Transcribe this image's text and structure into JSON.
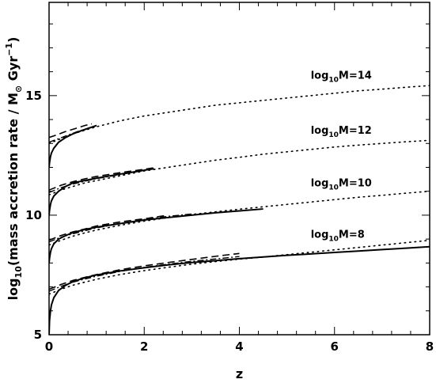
{
  "chart_data": {
    "type": "line",
    "xlabel": "z",
    "ylabel": {
      "prefix": "log",
      "prefix_sub": "10",
      "text": "(mass accretion rate / M",
      "sun_sub": "⊙",
      "unit": " Gyr",
      "unit_sup": "−1",
      "close": ")"
    },
    "xlim": [
      0,
      8
    ],
    "ylim": [
      5,
      18.9
    ],
    "x_ticks": [
      0,
      2,
      4,
      6,
      8
    ],
    "y_ticks": [
      5,
      10,
      15
    ],
    "annotations": [
      {
        "prefix": "log",
        "sub": "10",
        "text": "M=14",
        "x": 5.5,
        "y": 15.7
      },
      {
        "prefix": "log",
        "sub": "10",
        "text": "M=12",
        "x": 5.5,
        "y": 13.4
      },
      {
        "prefix": "log",
        "sub": "10",
        "text": "M=10",
        "x": 5.5,
        "y": 11.2
      },
      {
        "prefix": "log",
        "sub": "10",
        "text": "M=8",
        "x": 5.5,
        "y": 9.05
      }
    ],
    "series": [
      {
        "style": "solid",
        "points": [
          [
            0.0,
            12.0
          ],
          [
            0.01,
            12.2
          ],
          [
            0.03,
            12.45
          ],
          [
            0.05,
            12.6
          ],
          [
            0.1,
            12.8
          ],
          [
            0.2,
            13.05
          ],
          [
            0.35,
            13.25
          ],
          [
            0.5,
            13.4
          ],
          [
            0.7,
            13.55
          ],
          [
            0.85,
            13.65
          ],
          [
            1.0,
            13.75
          ]
        ]
      },
      {
        "style": "dashed",
        "points": [
          [
            0.0,
            13.25
          ],
          [
            0.15,
            13.35
          ],
          [
            0.35,
            13.5
          ],
          [
            0.55,
            13.62
          ],
          [
            0.75,
            13.75
          ],
          [
            0.9,
            13.82
          ]
        ]
      },
      {
        "style": "dashdot",
        "points": [
          [
            0.0,
            13.05
          ],
          [
            0.2,
            13.2
          ],
          [
            0.4,
            13.35
          ],
          [
            0.6,
            13.5
          ],
          [
            0.8,
            13.62
          ],
          [
            1.0,
            13.72
          ]
        ]
      },
      {
        "style": "dotted",
        "points": [
          [
            0.0,
            13.0
          ],
          [
            0.25,
            13.2
          ],
          [
            0.5,
            13.4
          ],
          [
            0.75,
            13.55
          ],
          [
            1.0,
            13.7
          ],
          [
            1.5,
            13.95
          ],
          [
            2.0,
            14.15
          ],
          [
            2.5,
            14.3
          ],
          [
            3.0,
            14.45
          ],
          [
            3.5,
            14.6
          ],
          [
            4.0,
            14.7
          ],
          [
            4.5,
            14.8
          ],
          [
            5.0,
            14.9
          ],
          [
            5.5,
            15.0
          ],
          [
            6.0,
            15.1
          ],
          [
            6.5,
            15.2
          ],
          [
            7.0,
            15.27
          ],
          [
            7.5,
            15.35
          ],
          [
            8.0,
            15.42
          ]
        ]
      },
      {
        "style": "solid",
        "points": [
          [
            0.0,
            10.0
          ],
          [
            0.01,
            10.2
          ],
          [
            0.03,
            10.45
          ],
          [
            0.05,
            10.6
          ],
          [
            0.1,
            10.8
          ],
          [
            0.2,
            11.0
          ],
          [
            0.35,
            11.2
          ],
          [
            0.5,
            11.35
          ],
          [
            0.75,
            11.45
          ],
          [
            1.0,
            11.55
          ],
          [
            1.5,
            11.72
          ],
          [
            2.0,
            11.88
          ],
          [
            2.2,
            11.95
          ]
        ]
      },
      {
        "style": "dashed",
        "points": [
          [
            0.0,
            11.05
          ],
          [
            0.25,
            11.25
          ],
          [
            0.5,
            11.4
          ],
          [
            0.75,
            11.52
          ],
          [
            1.0,
            11.62
          ],
          [
            1.5,
            11.78
          ],
          [
            2.0,
            11.92
          ],
          [
            2.2,
            11.98
          ]
        ]
      },
      {
        "style": "dashdot",
        "points": [
          [
            0.0,
            10.95
          ],
          [
            0.25,
            11.15
          ],
          [
            0.5,
            11.3
          ],
          [
            0.75,
            11.42
          ],
          [
            1.0,
            11.53
          ],
          [
            1.5,
            11.7
          ],
          [
            2.0,
            11.87
          ],
          [
            2.2,
            11.93
          ]
        ]
      },
      {
        "style": "dotted",
        "points": [
          [
            0.0,
            10.85
          ],
          [
            0.25,
            11.05
          ],
          [
            0.5,
            11.2
          ],
          [
            0.75,
            11.35
          ],
          [
            1.0,
            11.45
          ],
          [
            1.5,
            11.65
          ],
          [
            2.0,
            11.85
          ],
          [
            2.5,
            12.0
          ],
          [
            3.0,
            12.15
          ],
          [
            3.5,
            12.3
          ],
          [
            4.0,
            12.42
          ],
          [
            4.5,
            12.55
          ],
          [
            5.0,
            12.65
          ],
          [
            5.5,
            12.75
          ],
          [
            6.0,
            12.85
          ],
          [
            6.5,
            12.93
          ],
          [
            7.0,
            13.0
          ],
          [
            7.5,
            13.07
          ],
          [
            8.0,
            13.13
          ]
        ]
      },
      {
        "style": "solid",
        "points": [
          [
            0.0,
            8.0
          ],
          [
            0.01,
            8.2
          ],
          [
            0.03,
            8.45
          ],
          [
            0.05,
            8.6
          ],
          [
            0.1,
            8.8
          ],
          [
            0.2,
            9.0
          ],
          [
            0.35,
            9.15
          ],
          [
            0.5,
            9.27
          ],
          [
            0.75,
            9.4
          ],
          [
            1.0,
            9.5
          ],
          [
            1.5,
            9.65
          ],
          [
            2.0,
            9.8
          ],
          [
            2.5,
            9.9
          ],
          [
            3.0,
            10.0
          ],
          [
            3.5,
            10.1
          ],
          [
            4.0,
            10.18
          ],
          [
            4.5,
            10.26
          ]
        ]
      },
      {
        "style": "dashed",
        "points": [
          [
            0.0,
            8.95
          ],
          [
            0.25,
            9.15
          ],
          [
            0.5,
            9.3
          ],
          [
            0.75,
            9.42
          ],
          [
            1.0,
            9.55
          ],
          [
            1.5,
            9.72
          ],
          [
            2.0,
            9.85
          ],
          [
            2.5,
            10.0
          ]
        ]
      },
      {
        "style": "dashdot",
        "points": [
          [
            0.0,
            8.88
          ],
          [
            0.25,
            9.08
          ],
          [
            0.5,
            9.22
          ],
          [
            0.75,
            9.35
          ],
          [
            1.0,
            9.47
          ],
          [
            1.5,
            9.65
          ],
          [
            2.0,
            9.82
          ],
          [
            2.5,
            9.95
          ],
          [
            3.0,
            10.05
          ]
        ]
      },
      {
        "style": "dotted",
        "points": [
          [
            0.0,
            8.75
          ],
          [
            0.25,
            8.95
          ],
          [
            0.5,
            9.12
          ],
          [
            0.75,
            9.26
          ],
          [
            1.0,
            9.38
          ],
          [
            1.5,
            9.58
          ],
          [
            2.0,
            9.75
          ],
          [
            2.5,
            9.9
          ],
          [
            3.0,
            10.03
          ],
          [
            3.5,
            10.14
          ],
          [
            4.0,
            10.25
          ],
          [
            4.5,
            10.35
          ],
          [
            5.0,
            10.45
          ],
          [
            5.5,
            10.55
          ],
          [
            6.0,
            10.65
          ],
          [
            6.5,
            10.75
          ],
          [
            7.0,
            10.83
          ],
          [
            7.5,
            10.92
          ],
          [
            8.0,
            11.0
          ]
        ]
      },
      {
        "style": "solid",
        "points": [
          [
            0.0,
            5.0
          ],
          [
            0.01,
            5.6
          ],
          [
            0.03,
            6.0
          ],
          [
            0.05,
            6.25
          ],
          [
            0.1,
            6.55
          ],
          [
            0.2,
            6.85
          ],
          [
            0.35,
            7.07
          ],
          [
            0.5,
            7.22
          ],
          [
            0.75,
            7.38
          ],
          [
            1.0,
            7.5
          ],
          [
            1.5,
            7.67
          ],
          [
            2.0,
            7.8
          ],
          [
            2.5,
            7.92
          ],
          [
            3.0,
            8.02
          ],
          [
            3.5,
            8.1
          ],
          [
            4.0,
            8.18
          ],
          [
            4.5,
            8.25
          ],
          [
            5.0,
            8.32
          ],
          [
            5.5,
            8.38
          ],
          [
            6.0,
            8.44
          ],
          [
            6.5,
            8.5
          ],
          [
            7.0,
            8.56
          ],
          [
            7.5,
            8.62
          ],
          [
            8.0,
            8.68
          ]
        ]
      },
      {
        "style": "dashed",
        "points": [
          [
            0.0,
            6.9
          ],
          [
            0.25,
            7.1
          ],
          [
            0.5,
            7.27
          ],
          [
            0.75,
            7.4
          ],
          [
            1.0,
            7.52
          ],
          [
            1.5,
            7.72
          ],
          [
            2.0,
            7.88
          ],
          [
            2.5,
            8.02
          ],
          [
            3.0,
            8.15
          ],
          [
            3.5,
            8.28
          ],
          [
            4.0,
            8.4
          ]
        ]
      },
      {
        "style": "dashdot",
        "points": [
          [
            0.0,
            6.82
          ],
          [
            0.25,
            7.02
          ],
          [
            0.5,
            7.2
          ],
          [
            0.75,
            7.33
          ],
          [
            1.0,
            7.45
          ],
          [
            1.5,
            7.65
          ],
          [
            2.0,
            7.82
          ],
          [
            2.5,
            7.95
          ],
          [
            3.0,
            8.07
          ],
          [
            3.5,
            8.17
          ],
          [
            4.0,
            8.27
          ]
        ]
      },
      {
        "style": "dotted",
        "points": [
          [
            0.0,
            6.7
          ],
          [
            0.25,
            6.9
          ],
          [
            0.5,
            7.07
          ],
          [
            0.75,
            7.2
          ],
          [
            1.0,
            7.32
          ],
          [
            1.5,
            7.52
          ],
          [
            2.0,
            7.68
          ],
          [
            2.5,
            7.82
          ],
          [
            3.0,
            7.95
          ],
          [
            3.5,
            8.06
          ],
          [
            4.0,
            8.16
          ],
          [
            4.5,
            8.25
          ],
          [
            5.0,
            8.35
          ],
          [
            5.5,
            8.45
          ],
          [
            6.0,
            8.55
          ],
          [
            6.5,
            8.65
          ],
          [
            7.0,
            8.75
          ],
          [
            7.5,
            8.85
          ],
          [
            8.0,
            8.95
          ]
        ]
      }
    ]
  }
}
